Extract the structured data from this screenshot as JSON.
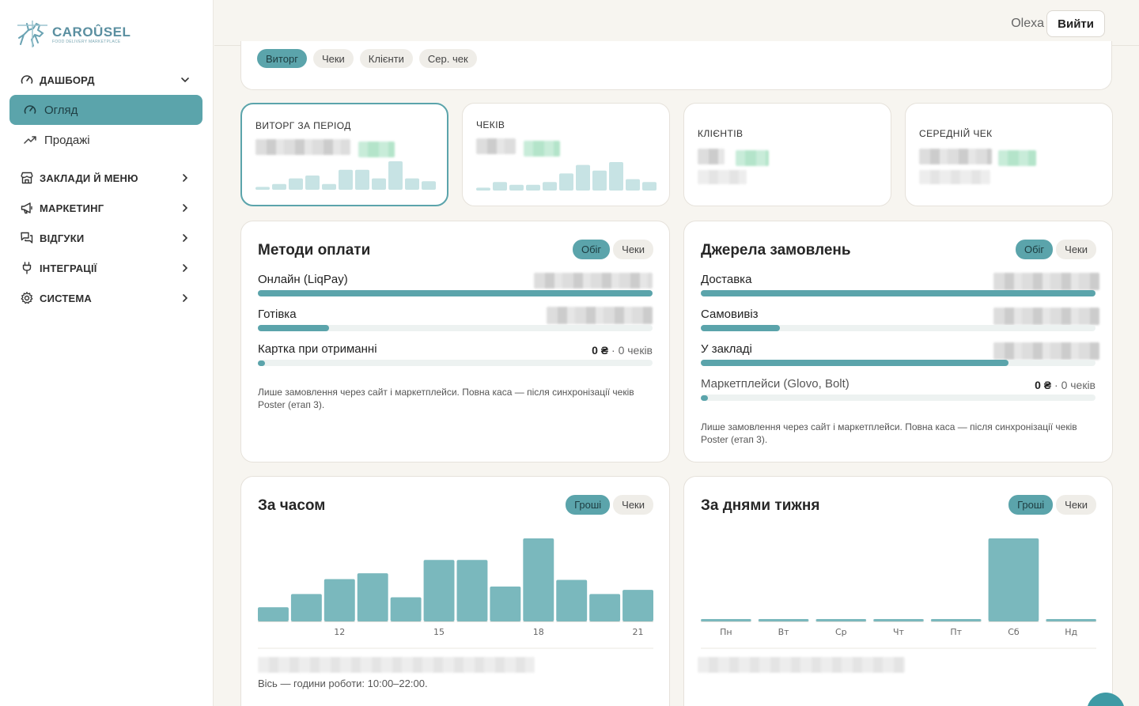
{
  "app": {
    "logo_name": "CAROÛSEL",
    "logo_tagline": "FOOD DELIVERY MARKETPLACE",
    "accent": "#5ba4ab"
  },
  "sidebar": {
    "dashboard": {
      "label": "ДАШБОРД",
      "icon": "gauge-icon",
      "expanded": true
    },
    "sub_items": [
      {
        "label": "Огляд",
        "icon": "gauge-icon",
        "active": true
      },
      {
        "label": "Продажі",
        "icon": "trend-up-icon",
        "active": false
      }
    ],
    "items": [
      {
        "label": "ЗАКЛАДИ Й МЕНЮ",
        "icon": "store-icon"
      },
      {
        "label": "МАРКЕТИНГ",
        "icon": "megaphone-icon"
      },
      {
        "label": "ВІДГУКИ",
        "icon": "chat-icon"
      },
      {
        "label": "ІНТЕГРАЦІЇ",
        "icon": "plug-icon"
      },
      {
        "label": "СИСТЕМА",
        "icon": "gear-icon"
      }
    ]
  },
  "header": {
    "user_name": "Olexa",
    "logout_label": "Вийти"
  },
  "filters": {
    "pills": [
      "Виторг",
      "Чеки",
      "Клієнти",
      "Сер. чек"
    ],
    "active_index": 0
  },
  "stats": [
    {
      "label": "ВИТОРГ ЗА ПЕРІОД",
      "selected": true,
      "sparkline": [
        1,
        2,
        4,
        5,
        2,
        7,
        7,
        4,
        10,
        4,
        3
      ]
    },
    {
      "label": "ЧЕКІВ",
      "selected": false,
      "sparkline": [
        1,
        3,
        2,
        2,
        3,
        6,
        9,
        7,
        10,
        4,
        3
      ]
    },
    {
      "label": "КЛІЄНТІВ",
      "selected": false
    },
    {
      "label": "СЕРЕДНІЙ ЧЕК",
      "selected": false
    }
  ],
  "payment_methods": {
    "title": "Методи оплати",
    "toggle": [
      "Обіг",
      "Чеки"
    ],
    "toggle_active": 0,
    "rows": [
      {
        "label": "Онлайн (LiqPay)",
        "share": 1.0,
        "value": "",
        "count": ""
      },
      {
        "label": "Готівка",
        "share": 0.18,
        "value": "",
        "count": ""
      },
      {
        "label": "Картка при отриманні",
        "share": 0.0,
        "value": "0 ₴",
        "count": "· 0 чеків"
      }
    ],
    "note": "Лише замовлення через сайт і маркетплейси. Повна каса — після синхронізації чеків Poster (етап 3)."
  },
  "order_sources": {
    "title": "Джерела замовлень",
    "toggle": [
      "Обіг",
      "Чеки"
    ],
    "toggle_active": 0,
    "rows": [
      {
        "label": "Доставка",
        "share": 1.0,
        "value": "",
        "count": ""
      },
      {
        "label": "Самовивіз",
        "share": 0.2,
        "value": "",
        "count": ""
      },
      {
        "label": "У закладі",
        "share": 0.78,
        "value": "",
        "count": ""
      },
      {
        "label": "Маркетплейси (Glovo, Bolt)",
        "share": 0.0,
        "value": "0 ₴",
        "count": "· 0 чеків"
      }
    ],
    "note": "Лише замовлення через сайт і маркетплейси. Повна каса — після синхронізації чеків Poster (етап 3)."
  },
  "by_hour": {
    "title": "За часом",
    "toggle": [
      "Гроші",
      "Чеки"
    ],
    "toggle_active": 0,
    "footer": "Вісь — години роботи: 10:00–22:00.",
    "chart_data": {
      "type": "bar",
      "categories": [
        "10",
        "11",
        "12",
        "13",
        "14",
        "15",
        "16",
        "17",
        "18",
        "19",
        "20",
        "21"
      ],
      "tick_labels": [
        "12",
        "15",
        "18",
        "21"
      ],
      "values": [
        17,
        33,
        51,
        58,
        29,
        74,
        74,
        42,
        100,
        50,
        33,
        38
      ],
      "title": "За часом",
      "xlabel": "",
      "ylabel": ""
    }
  },
  "by_weekday": {
    "title": "За днями тижня",
    "toggle": [
      "Гроші",
      "Чеки"
    ],
    "toggle_active": 0,
    "chart_data": {
      "type": "bar",
      "categories": [
        "Пн",
        "Вт",
        "Ср",
        "Чт",
        "Пт",
        "Сб",
        "Нд"
      ],
      "values": [
        1,
        1,
        1,
        1,
        1,
        100,
        1
      ],
      "title": "За днями тижня",
      "xlabel": "",
      "ylabel": ""
    }
  }
}
